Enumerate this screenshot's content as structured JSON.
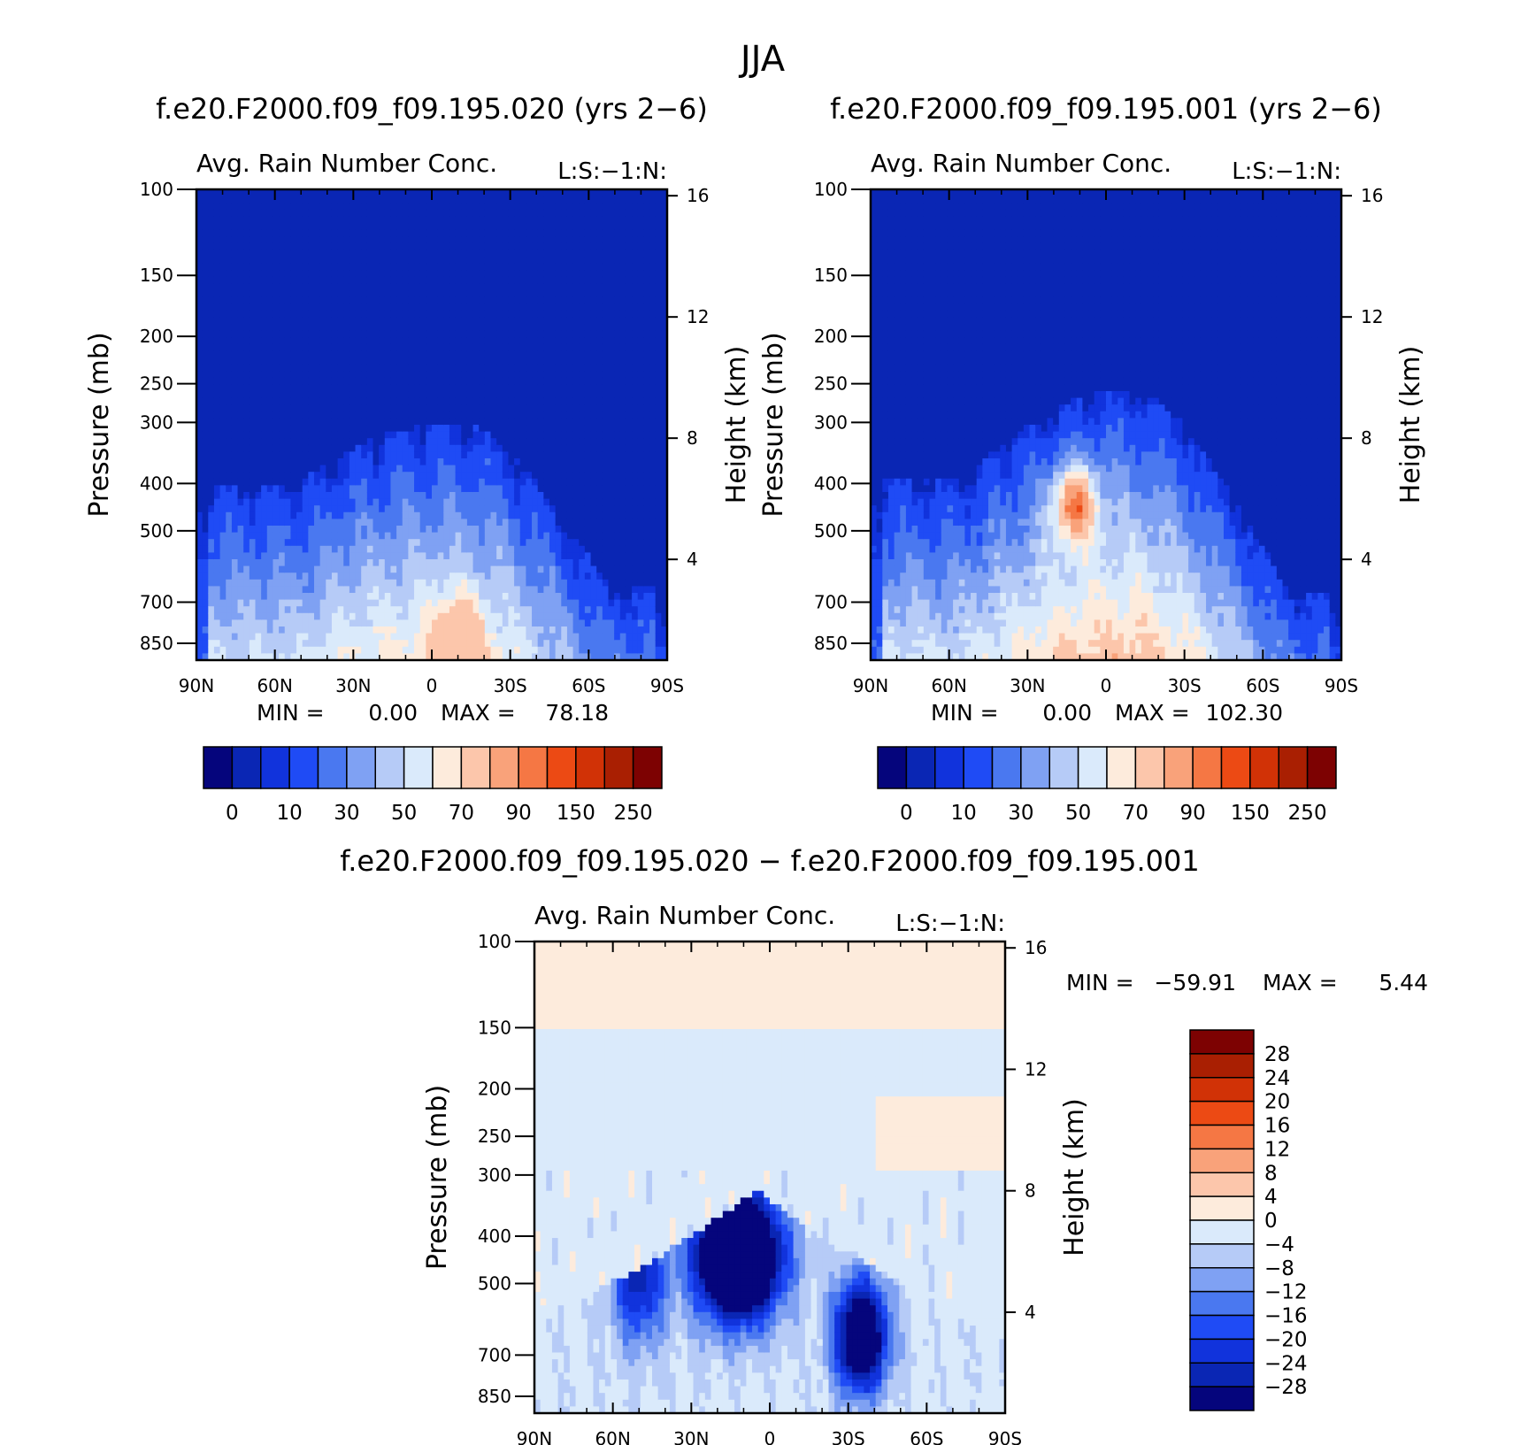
{
  "figure": {
    "title": "JJA"
  },
  "colors": {
    "field_scale": [
      "#05057c",
      "#0a26b4",
      "#1133dc",
      "#1f4bf5",
      "#4a78f0",
      "#7fa1f3",
      "#b6cbf7",
      "#daeafb",
      "#fdebdc",
      "#fcc6ab",
      "#f9a27a",
      "#f57744",
      "#ec4a14",
      "#d13206",
      "#a91f02",
      "#7d0202"
    ],
    "diff_scale": [
      "#05057c",
      "#0a26b4",
      "#1133dc",
      "#1f4bf5",
      "#4a78f0",
      "#7fa1f3",
      "#b6cbf7",
      "#daeafb",
      "#fdebdc",
      "#fcc6ab",
      "#f9a27a",
      "#f57744",
      "#ec4a14",
      "#d13206",
      "#a91f02",
      "#7d0202"
    ]
  },
  "chart_data": [
    {
      "type": "heatmap",
      "case_title": "f.e20.F2000.f09_f09.195.020 (yrs 2−6)",
      "variable_title": "Avg. Rain Number Conc.",
      "level_tag": "L:S:−1:N:",
      "ylabel_left": "Pressure (mb)",
      "ylabel_right": "Height (km)",
      "x_ticks": [
        "90N",
        "60N",
        "30N",
        "0",
        "30S",
        "60S",
        "90S"
      ],
      "x_range": [
        90,
        -90
      ],
      "p_ticks": [
        100,
        150,
        200,
        250,
        300,
        400,
        500,
        700,
        850
      ],
      "p_range": [
        100,
        920
      ],
      "h_ticks": [
        16,
        12,
        8,
        4
      ],
      "min_label": "MIN =",
      "min_value": "0.00",
      "max_label": "MAX =",
      "max_value": "78.18",
      "colorbar_labels": [
        "0",
        "10",
        "30",
        "50",
        "70",
        "90",
        "150",
        "250"
      ],
      "contour_levels": [
        0,
        5,
        10,
        20,
        30,
        40,
        50,
        60,
        70,
        80,
        90,
        100,
        150,
        200,
        250
      ],
      "field_model": {
        "top_hpa": 300,
        "top_lat": -8,
        "top_width": 60,
        "left_top_hpa": 400,
        "right_top_hpa": 650,
        "max_value": 78.18,
        "peak_lat": -10,
        "peak_hpa": 820
      }
    },
    {
      "type": "heatmap",
      "case_title": "f.e20.F2000.f09_f09.195.001 (yrs 2−6)",
      "variable_title": "Avg. Rain Number Conc.",
      "level_tag": "L:S:−1:N:",
      "ylabel_left": "Pressure (mb)",
      "ylabel_right": "Height (km)",
      "x_ticks": [
        "90N",
        "60N",
        "30N",
        "0",
        "30S",
        "60S",
        "90S"
      ],
      "x_range": [
        90,
        -90
      ],
      "p_ticks": [
        100,
        150,
        200,
        250,
        300,
        400,
        500,
        700,
        850
      ],
      "p_range": [
        100,
        920
      ],
      "h_ticks": [
        16,
        12,
        8,
        4
      ],
      "min_label": "MIN =",
      "min_value": "0.00",
      "max_label": "MAX =",
      "max_value": "102.30",
      "colorbar_labels": [
        "0",
        "10",
        "30",
        "50",
        "70",
        "90",
        "150",
        "250"
      ],
      "contour_levels": [
        0,
        5,
        10,
        20,
        30,
        40,
        50,
        60,
        70,
        80,
        90,
        100,
        150,
        200,
        250
      ],
      "field_model": {
        "top_hpa": 255,
        "top_lat": -8,
        "top_width": 62,
        "left_top_hpa": 390,
        "right_top_hpa": 660,
        "max_value": 102.3,
        "peak_lat": 12,
        "peak_hpa": 440
      }
    },
    {
      "type": "heatmap",
      "case_title": "f.e20.F2000.f09_f09.195.020 − f.e20.F2000.f09_f09.195.001",
      "variable_title": "Avg. Rain Number Conc.",
      "level_tag": "L:S:−1:N:",
      "ylabel_left": "Pressure (mb)",
      "ylabel_right": "Height (km)",
      "x_ticks": [
        "90N",
        "60N",
        "30N",
        "0",
        "30S",
        "60S",
        "90S"
      ],
      "x_range": [
        90,
        -90
      ],
      "p_ticks": [
        100,
        150,
        200,
        250,
        300,
        400,
        500,
        700,
        850
      ],
      "p_range": [
        100,
        920
      ],
      "h_ticks": [
        16,
        12,
        8,
        4
      ],
      "min_label": "MIN =",
      "min_value": "−59.91",
      "max_label": "MAX =",
      "max_value": "5.44",
      "colorbar_labels": [
        "28",
        "24",
        "20",
        "16",
        "12",
        "8",
        "4",
        "0",
        "−4",
        "−8",
        "−12",
        "−16",
        "−20",
        "−24",
        "−28"
      ],
      "contour_levels": [
        -28,
        -24,
        -20,
        -16,
        -12,
        -8,
        -4,
        0,
        4,
        8,
        12,
        16,
        20,
        24,
        28
      ],
      "field_model": {
        "min_value": -59.91,
        "max_value": 5.44,
        "core_lat": 12,
        "core_hpa": 440,
        "second_core_lat": -35,
        "second_core_hpa": 640
      }
    }
  ]
}
